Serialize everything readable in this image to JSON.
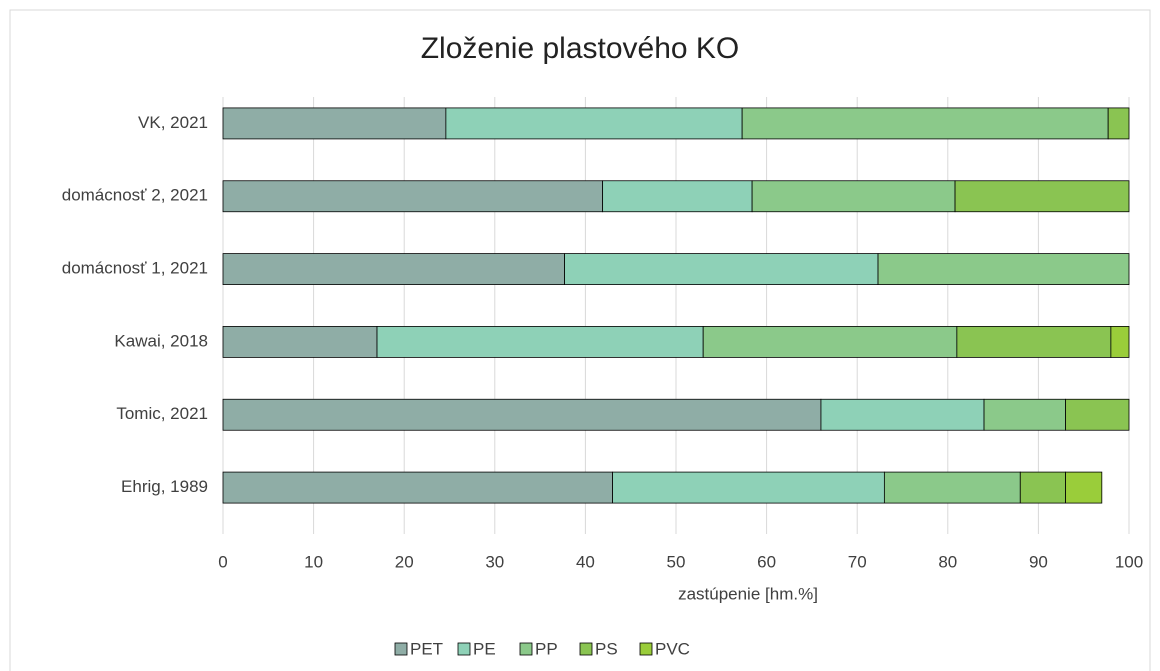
{
  "chart_data": {
    "type": "stacked_barh",
    "title": "Zloženie plastového KO",
    "categories": [
      "VK, 2021",
      "domácnosť 2, 2021",
      "domácnosť 1, 2021",
      "Kawai, 2018",
      "Tomic, 2021",
      "Ehrig, 1989"
    ],
    "series": [
      {
        "name": "PET",
        "color": "#8fada6",
        "values": [
          24.6,
          41.9,
          37.7,
          17,
          66,
          43
        ]
      },
      {
        "name": "PE",
        "color": "#8ed1b7",
        "values": [
          32.7,
          16.5,
          34.6,
          36,
          18,
          30
        ]
      },
      {
        "name": "PP",
        "color": "#8bc98a",
        "values": [
          40.4,
          22.4,
          27.7,
          28,
          9,
          15
        ]
      },
      {
        "name": "PS",
        "color": "#8ac452",
        "values": [
          2.3,
          19.2,
          0,
          17,
          7,
          5
        ]
      },
      {
        "name": "PVC",
        "color": "#9acd3a",
        "values": [
          0,
          0,
          0,
          2,
          0,
          4
        ]
      }
    ],
    "xlabel": "zastúpenie [hm.%]",
    "xlim": [
      0,
      100
    ],
    "xticks": [
      0,
      10,
      20,
      30,
      40,
      50,
      60,
      70,
      80,
      90,
      100
    ],
    "grid": true,
    "legend": "bottom"
  }
}
